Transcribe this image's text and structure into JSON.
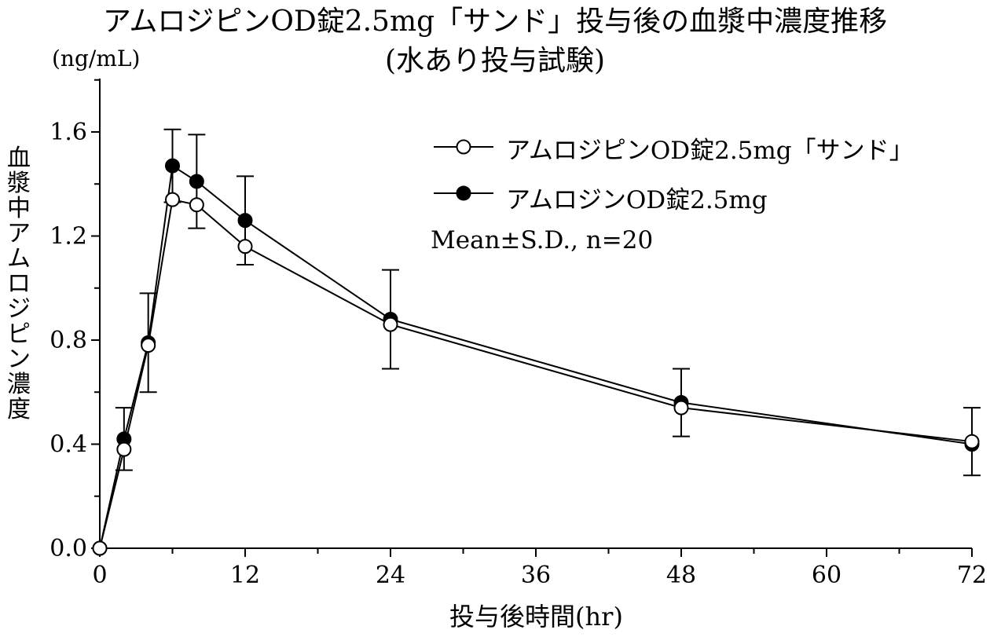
{
  "chart_data": {
    "type": "line",
    "title": "アムロジピンOD錠2.5mg「サンド」投与後の血漿中濃度推移",
    "subtitle": "(水あり投与試験)",
    "unit_label": "(ng/mL)",
    "ylabel": "血漿中アムロジピン濃度",
    "xlabel": "投与後時間(hr)",
    "xlim": [
      0,
      72
    ],
    "ylim": [
      0,
      1.8
    ],
    "x_ticks": [
      0,
      12,
      24,
      36,
      48,
      60,
      72
    ],
    "x_minor_step": 6,
    "y_ticks": [
      0.0,
      0.4,
      0.8,
      1.2,
      1.6
    ],
    "y_tick_labels": [
      "0.0",
      "0.4",
      "0.8",
      "1.2",
      "1.6"
    ],
    "y_minor_step": 0.2,
    "legend_placement": "top-right",
    "annotation": "Mean±S.D., n=20",
    "series": [
      {
        "name": "アムロジピンOD錠2.5mg「サンド」",
        "marker": "open-circle",
        "x": [
          0,
          2,
          4,
          6,
          8,
          12,
          24,
          48,
          72
        ],
        "y": [
          0.0,
          0.38,
          0.78,
          1.34,
          1.32,
          1.16,
          0.86,
          0.54,
          0.41
        ]
      },
      {
        "name": "アムロジンOD錠2.5mg",
        "marker": "filled-circle",
        "x": [
          0,
          2,
          4,
          6,
          8,
          12,
          24,
          48,
          72
        ],
        "y": [
          0.0,
          0.42,
          0.79,
          1.47,
          1.41,
          1.26,
          0.88,
          0.56,
          0.4
        ]
      }
    ],
    "error_bars": {
      "x": [
        2,
        4,
        6,
        8,
        12,
        24,
        48,
        72
      ],
      "sd": [
        0.12,
        0.19,
        0.14,
        0.18,
        0.17,
        0.19,
        0.13,
        0.13
      ]
    }
  }
}
